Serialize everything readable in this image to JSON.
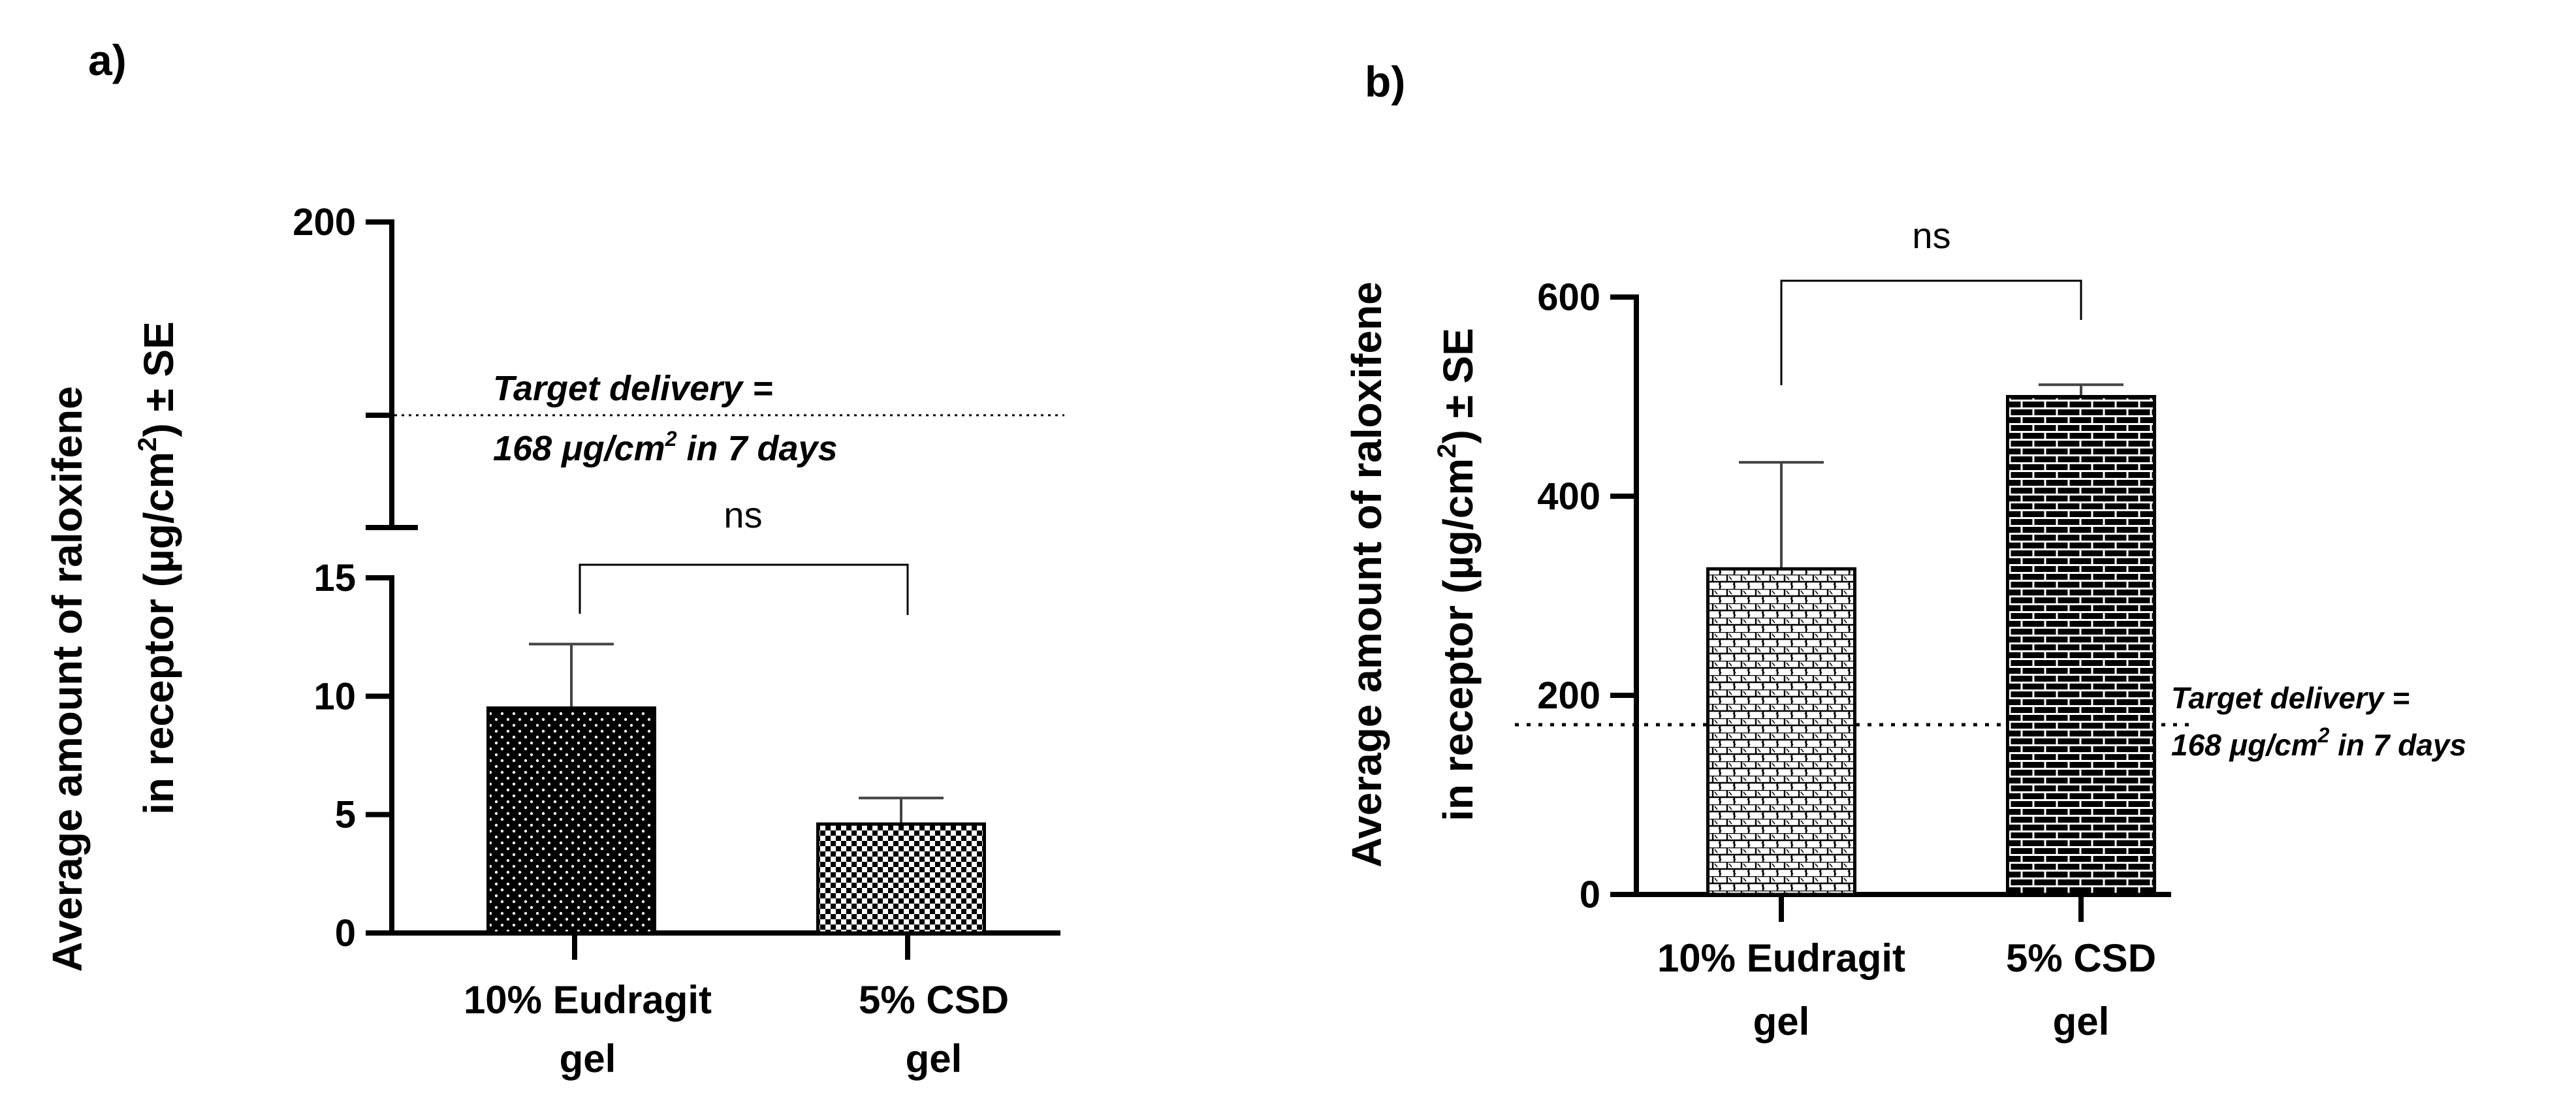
{
  "chart_data": [
    {
      "panel": "a)",
      "type": "bar",
      "ylabel_line1": "Average amount of raloxifene",
      "ylabel_line2_pre": "in receptor (µg/cm",
      "ylabel_sup": "2",
      "ylabel_line2_post": ") ± SE",
      "categories": [
        {
          "line1": "10% Eudragit",
          "line2": "gel"
        },
        {
          "line1": "5% CSD",
          "line2": "gel"
        }
      ],
      "values": [
        9.5,
        4.6
      ],
      "errors": [
        2.7,
        1.1
      ],
      "y_ticks_lower": [
        "0",
        "5",
        "10",
        "15"
      ],
      "y_ticks_upper": [
        "200"
      ],
      "ylim_lower": [
        0,
        15
      ],
      "ylim_upper": [
        15,
        200
      ],
      "target_value": 168,
      "target_text_line1": "Target delivery =",
      "target_text_line2_pre": "168 μg/cm",
      "target_text_sup": "2",
      "target_text_line2_post": " in 7 days",
      "significance": "ns"
    },
    {
      "panel": "b)",
      "type": "bar",
      "ylabel_line1": "Average amount of raloxifene",
      "ylabel_line2_pre": "in receptor (µg/cm",
      "ylabel_sup": "2",
      "ylabel_line2_post": ") ± SE",
      "categories": [
        {
          "line1": "10% Eudragit",
          "line2": "gel"
        },
        {
          "line1": "5% CSD",
          "line2": "gel"
        }
      ],
      "values": [
        327,
        500
      ],
      "errors": [
        107,
        12
      ],
      "y_ticks": [
        "0",
        "200",
        "400",
        "600"
      ],
      "ylim": [
        0,
        600
      ],
      "target_value": 168,
      "target_text_line1": "Target delivery =",
      "target_text_line2_pre": "168 μg/cm",
      "target_text_sup": "2",
      "target_text_line2_post": " in 7 days",
      "significance": "ns"
    }
  ]
}
